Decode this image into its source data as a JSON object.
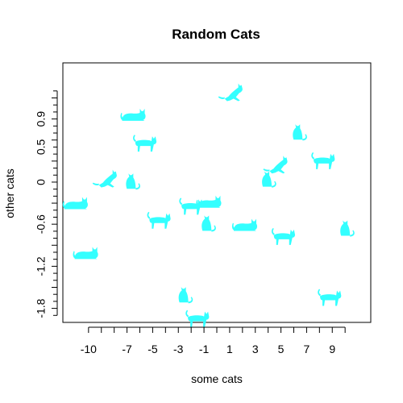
{
  "chart_data": {
    "type": "scatter",
    "title": "Random Cats",
    "xlabel": "some cats",
    "ylabel": "other cats",
    "xlim": [
      -12,
      12
    ],
    "ylim": [
      -2.0,
      1.7
    ],
    "grid": false,
    "point_color": "#33ffff",
    "marker": "cat-icon",
    "x_ticks": [
      -10,
      -9,
      -8,
      -7,
      -6,
      -5,
      -4,
      -3,
      -2,
      -1,
      0,
      1,
      2,
      3,
      4,
      5,
      6,
      7,
      8,
      9,
      10
    ],
    "x_tick_labels": [
      {
        "value": -10,
        "label": "-10"
      },
      {
        "value": -7,
        "label": "-7"
      },
      {
        "value": -5,
        "label": "-5"
      },
      {
        "value": -3,
        "label": "-3"
      },
      {
        "value": -1,
        "label": "-1"
      },
      {
        "value": 1,
        "label": "1"
      },
      {
        "value": 3,
        "label": "3"
      },
      {
        "value": 5,
        "label": "5"
      },
      {
        "value": 7,
        "label": "7"
      },
      {
        "value": 9,
        "label": "9"
      }
    ],
    "y_ticks": [
      -1.9,
      -1.8,
      -1.7,
      -1.6,
      -1.5,
      -1.4,
      -1.3,
      -1.2,
      -1.1,
      -1.0,
      -0.9,
      -0.8,
      -0.7,
      -0.6,
      -0.5,
      -0.4,
      -0.3,
      -0.2,
      -0.1,
      0,
      0.1,
      0.2,
      0.3,
      0.4,
      0.5,
      0.6,
      0.7,
      0.8,
      0.9,
      1.0,
      1.1,
      1.2,
      1.3
    ],
    "y_ticks_major": [
      -1.8,
      -1.5,
      -1.2,
      -0.9,
      -0.6,
      -0.3,
      0,
      0.3,
      0.6,
      0.9,
      1.2
    ],
    "y_tick_labels": [
      {
        "value": -1.8,
        "label": "-1.8"
      },
      {
        "value": -1.2,
        "label": "-1.2"
      },
      {
        "value": -0.6,
        "label": "-0.6"
      },
      {
        "value": 0,
        "label": "0"
      },
      {
        "value": 0.5,
        "label": "0.5"
      },
      {
        "value": 0.9,
        "label": "0.9"
      }
    ],
    "points": [
      {
        "x": 1.3,
        "y": 1.28,
        "pose": "jumping"
      },
      {
        "x": -6.5,
        "y": 0.92,
        "pose": "lying"
      },
      {
        "x": 6.3,
        "y": 0.72,
        "pose": "sitting"
      },
      {
        "x": -5.6,
        "y": 0.55,
        "pose": "walking"
      },
      {
        "x": 8.3,
        "y": 0.3,
        "pose": "walking"
      },
      {
        "x": 4.8,
        "y": 0.25,
        "pose": "jumping"
      },
      {
        "x": -8.5,
        "y": 0.05,
        "pose": "jumping"
      },
      {
        "x": -6.7,
        "y": 0.02,
        "pose": "sitting"
      },
      {
        "x": 3.9,
        "y": 0.05,
        "pose": "sitting"
      },
      {
        "x": -11.0,
        "y": -0.34,
        "pose": "lying"
      },
      {
        "x": -2.0,
        "y": -0.35,
        "pose": "walking"
      },
      {
        "x": -0.6,
        "y": -0.32,
        "pose": "lying"
      },
      {
        "x": -4.5,
        "y": -0.55,
        "pose": "walking"
      },
      {
        "x": -0.8,
        "y": -0.58,
        "pose": "sitting"
      },
      {
        "x": 2.2,
        "y": -0.65,
        "pose": "lying"
      },
      {
        "x": 10.0,
        "y": -0.65,
        "pose": "sitting"
      },
      {
        "x": 5.2,
        "y": -0.78,
        "pose": "walking"
      },
      {
        "x": -10.2,
        "y": -1.05,
        "pose": "lying"
      },
      {
        "x": -2.6,
        "y": -1.6,
        "pose": "sitting"
      },
      {
        "x": 8.8,
        "y": -1.65,
        "pose": "walking"
      },
      {
        "x": -1.5,
        "y": -1.95,
        "pose": "walking"
      }
    ]
  }
}
